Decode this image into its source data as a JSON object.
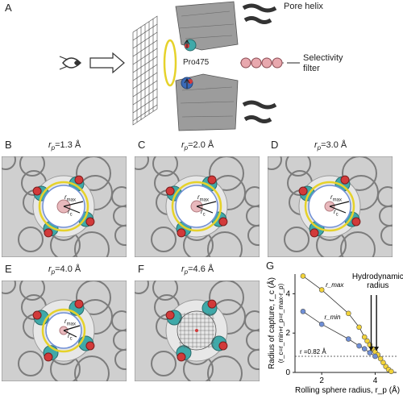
{
  "top": {
    "label": "A",
    "pore_helix": "Pore helix",
    "selectivity_filter": "Selectivity\nfilter",
    "pro475": "Pro475"
  },
  "panels": [
    {
      "id": "B",
      "label": "B",
      "caption": "r",
      "sub": "p",
      "value": "=1.3 Å"
    },
    {
      "id": "C",
      "label": "C",
      "caption": "r",
      "sub": "p",
      "value": "=2.0 Å"
    },
    {
      "id": "D",
      "label": "D",
      "caption": "r",
      "sub": "p",
      "value": "=3.0 Å"
    },
    {
      "id": "E",
      "label": "E",
      "caption": "r",
      "sub": "p",
      "value": "=4.0 Å"
    },
    {
      "id": "F",
      "label": "F",
      "caption": "r",
      "sub": "p",
      "value": "=4.6 Å"
    }
  ],
  "panel_annotations": {
    "rmax": "r_max",
    "rc": "r_c"
  },
  "chart_data": {
    "type": "scatter",
    "label": "G",
    "title": "",
    "xlabel": "Rolling sphere radius, r_p (Å)",
    "ylabel": "Radius of capture, r_c (Å)",
    "ylabel2": "(r_c=r_min+r_p=r_max-r_p)",
    "xlim": [
      1,
      4.8
    ],
    "ylim": [
      0,
      5
    ],
    "xticks": [
      2,
      4
    ],
    "yticks": [
      0,
      2,
      4
    ],
    "series": [
      {
        "name": "r_max",
        "color": "#f2d33a",
        "x": [
          1.3,
          2.0,
          3.0,
          3.4,
          3.6,
          3.7,
          3.8,
          3.9,
          4.0,
          4.1,
          4.2,
          4.3,
          4.4,
          4.5,
          4.6
        ],
        "y": [
          4.9,
          4.2,
          3.0,
          2.3,
          1.8,
          1.6,
          1.4,
          1.2,
          1.05,
          0.9,
          0.7,
          0.5,
          0.3,
          0.15,
          0.05
        ]
      },
      {
        "name": "r_min",
        "color": "#6f8fd6",
        "x": [
          1.3,
          2.0,
          3.0,
          3.4,
          3.6,
          3.8,
          4.0
        ],
        "y": [
          3.1,
          2.45,
          1.7,
          1.35,
          1.2,
          1.0,
          0.82
        ]
      }
    ],
    "annotations": {
      "hydrodynamic": "Hydrodynamic\nradius",
      "threshold": "r =0.82 Å",
      "threshold_value": 0.82,
      "rmax_label": "r_max",
      "rmin_label": "r_min"
    }
  }
}
